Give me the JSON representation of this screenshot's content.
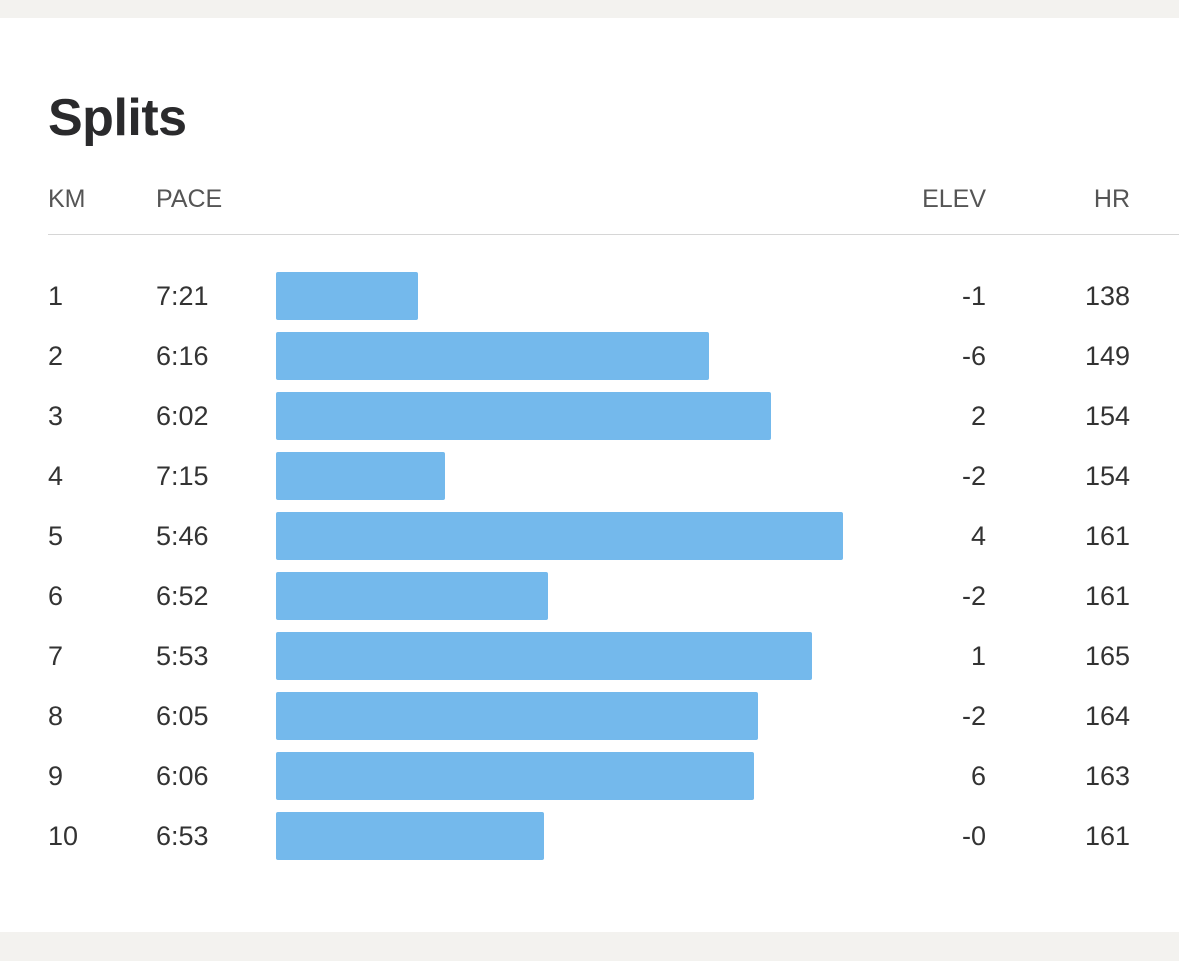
{
  "title": "Splits",
  "headers": {
    "km": "KM",
    "pace": "PACE",
    "elev": "ELEV",
    "hr": "HR"
  },
  "colors": {
    "bar": "#74b9ec",
    "background": "#f3f2ef"
  },
  "splits": [
    {
      "km": "1",
      "pace": "7:21",
      "elev": "-1",
      "hr": "138"
    },
    {
      "km": "2",
      "pace": "6:16",
      "elev": "-6",
      "hr": "149"
    },
    {
      "km": "3",
      "pace": "6:02",
      "elev": "2",
      "hr": "154"
    },
    {
      "km": "4",
      "pace": "7:15",
      "elev": "-2",
      "hr": "154"
    },
    {
      "km": "5",
      "pace": "5:46",
      "elev": "4",
      "hr": "161"
    },
    {
      "km": "6",
      "pace": "6:52",
      "elev": "-2",
      "hr": "161"
    },
    {
      "km": "7",
      "pace": "5:53",
      "elev": "1",
      "hr": "165"
    },
    {
      "km": "8",
      "pace": "6:05",
      "elev": "-2",
      "hr": "164"
    },
    {
      "km": "9",
      "pace": "6:06",
      "elev": "6",
      "hr": "163"
    },
    {
      "km": "10",
      "pace": "6:53",
      "elev": "-0",
      "hr": "161"
    }
  ]
}
